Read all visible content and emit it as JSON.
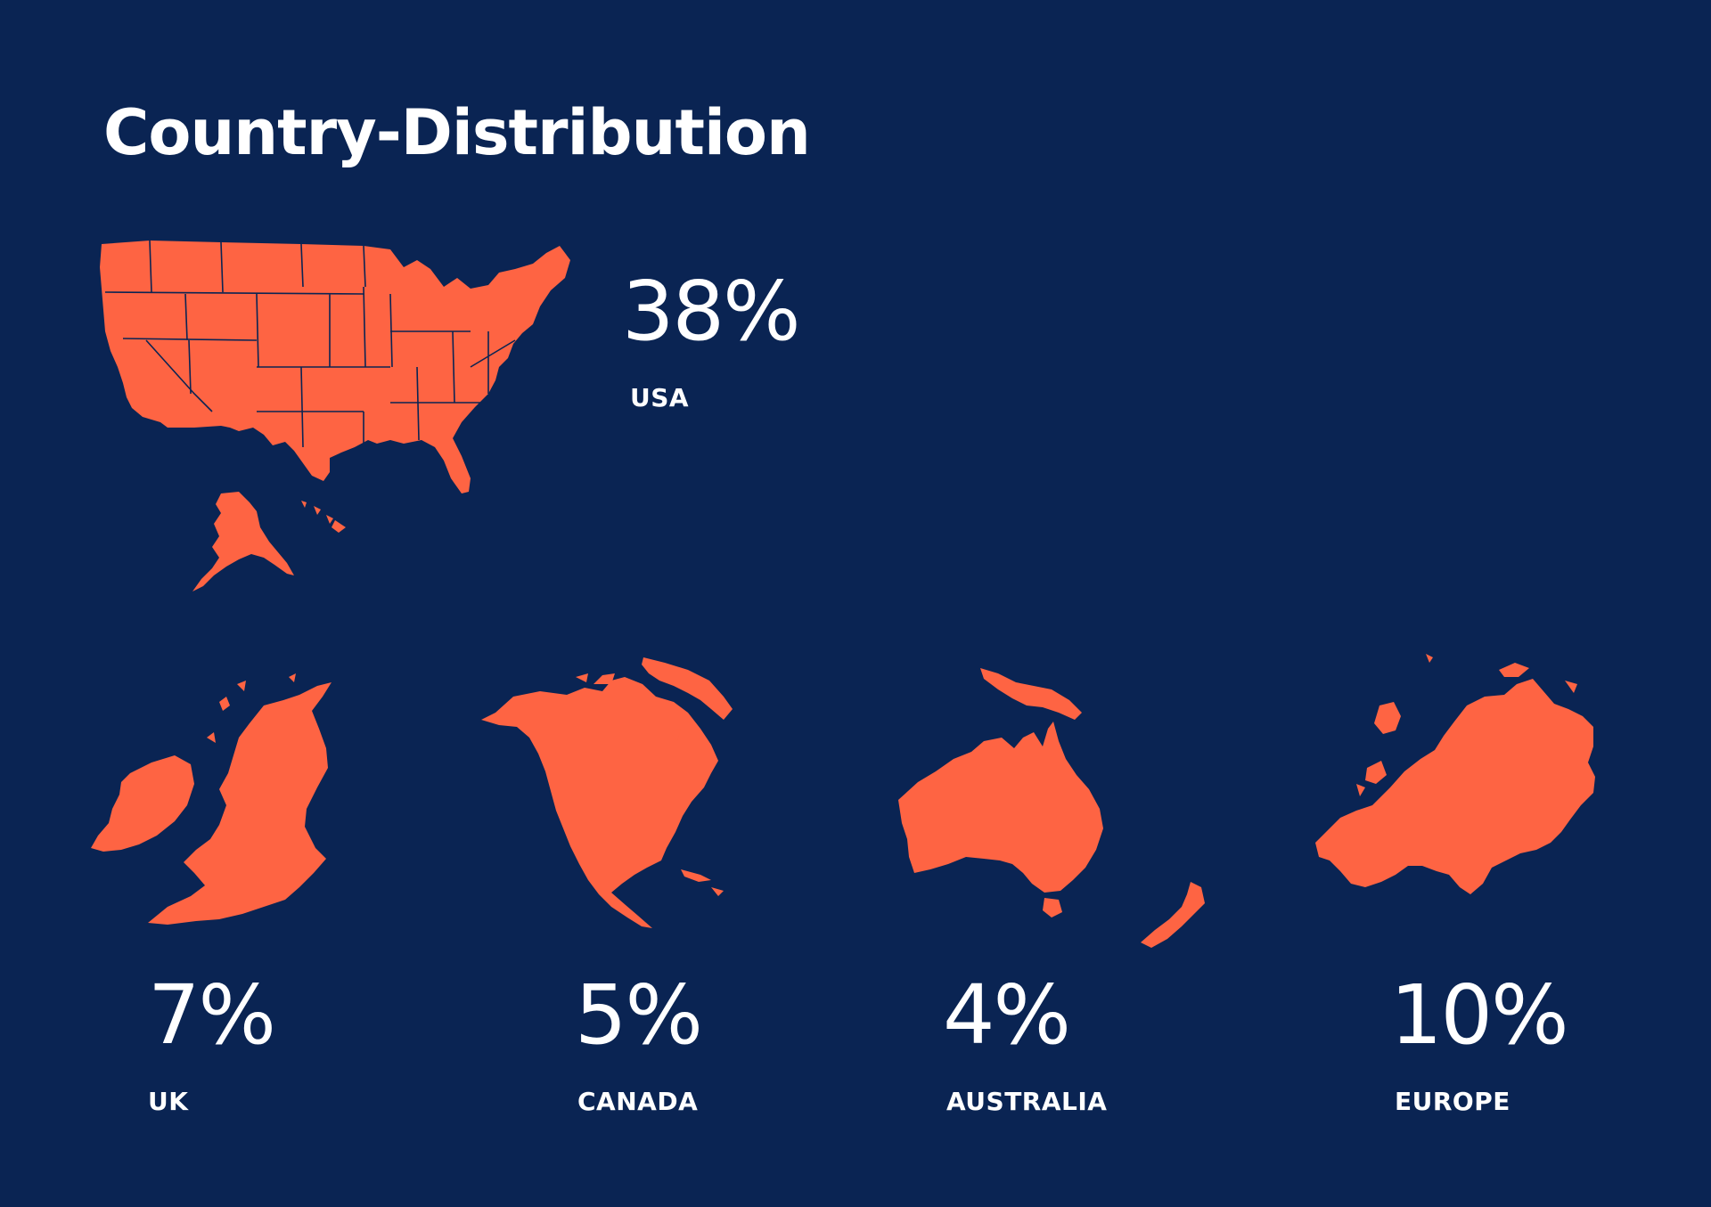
{
  "title": "Country-Distribution",
  "colors": {
    "background": "#0a2453",
    "map_fill": "#fe6443",
    "text": "#ffffff"
  },
  "regions": [
    {
      "id": "usa",
      "percent": "38%",
      "label": "USA",
      "icon": "usa-map-icon"
    },
    {
      "id": "uk",
      "percent": "7%",
      "label": "UK",
      "icon": "uk-map-icon"
    },
    {
      "id": "canada",
      "percent": "5%",
      "label": "CANADA",
      "icon": "north-america-map-icon"
    },
    {
      "id": "australia",
      "percent": "4%",
      "label": "AUSTRALIA",
      "icon": "australia-map-icon"
    },
    {
      "id": "europe",
      "percent": "10%",
      "label": "EUROPE",
      "icon": "europe-map-icon"
    }
  ]
}
